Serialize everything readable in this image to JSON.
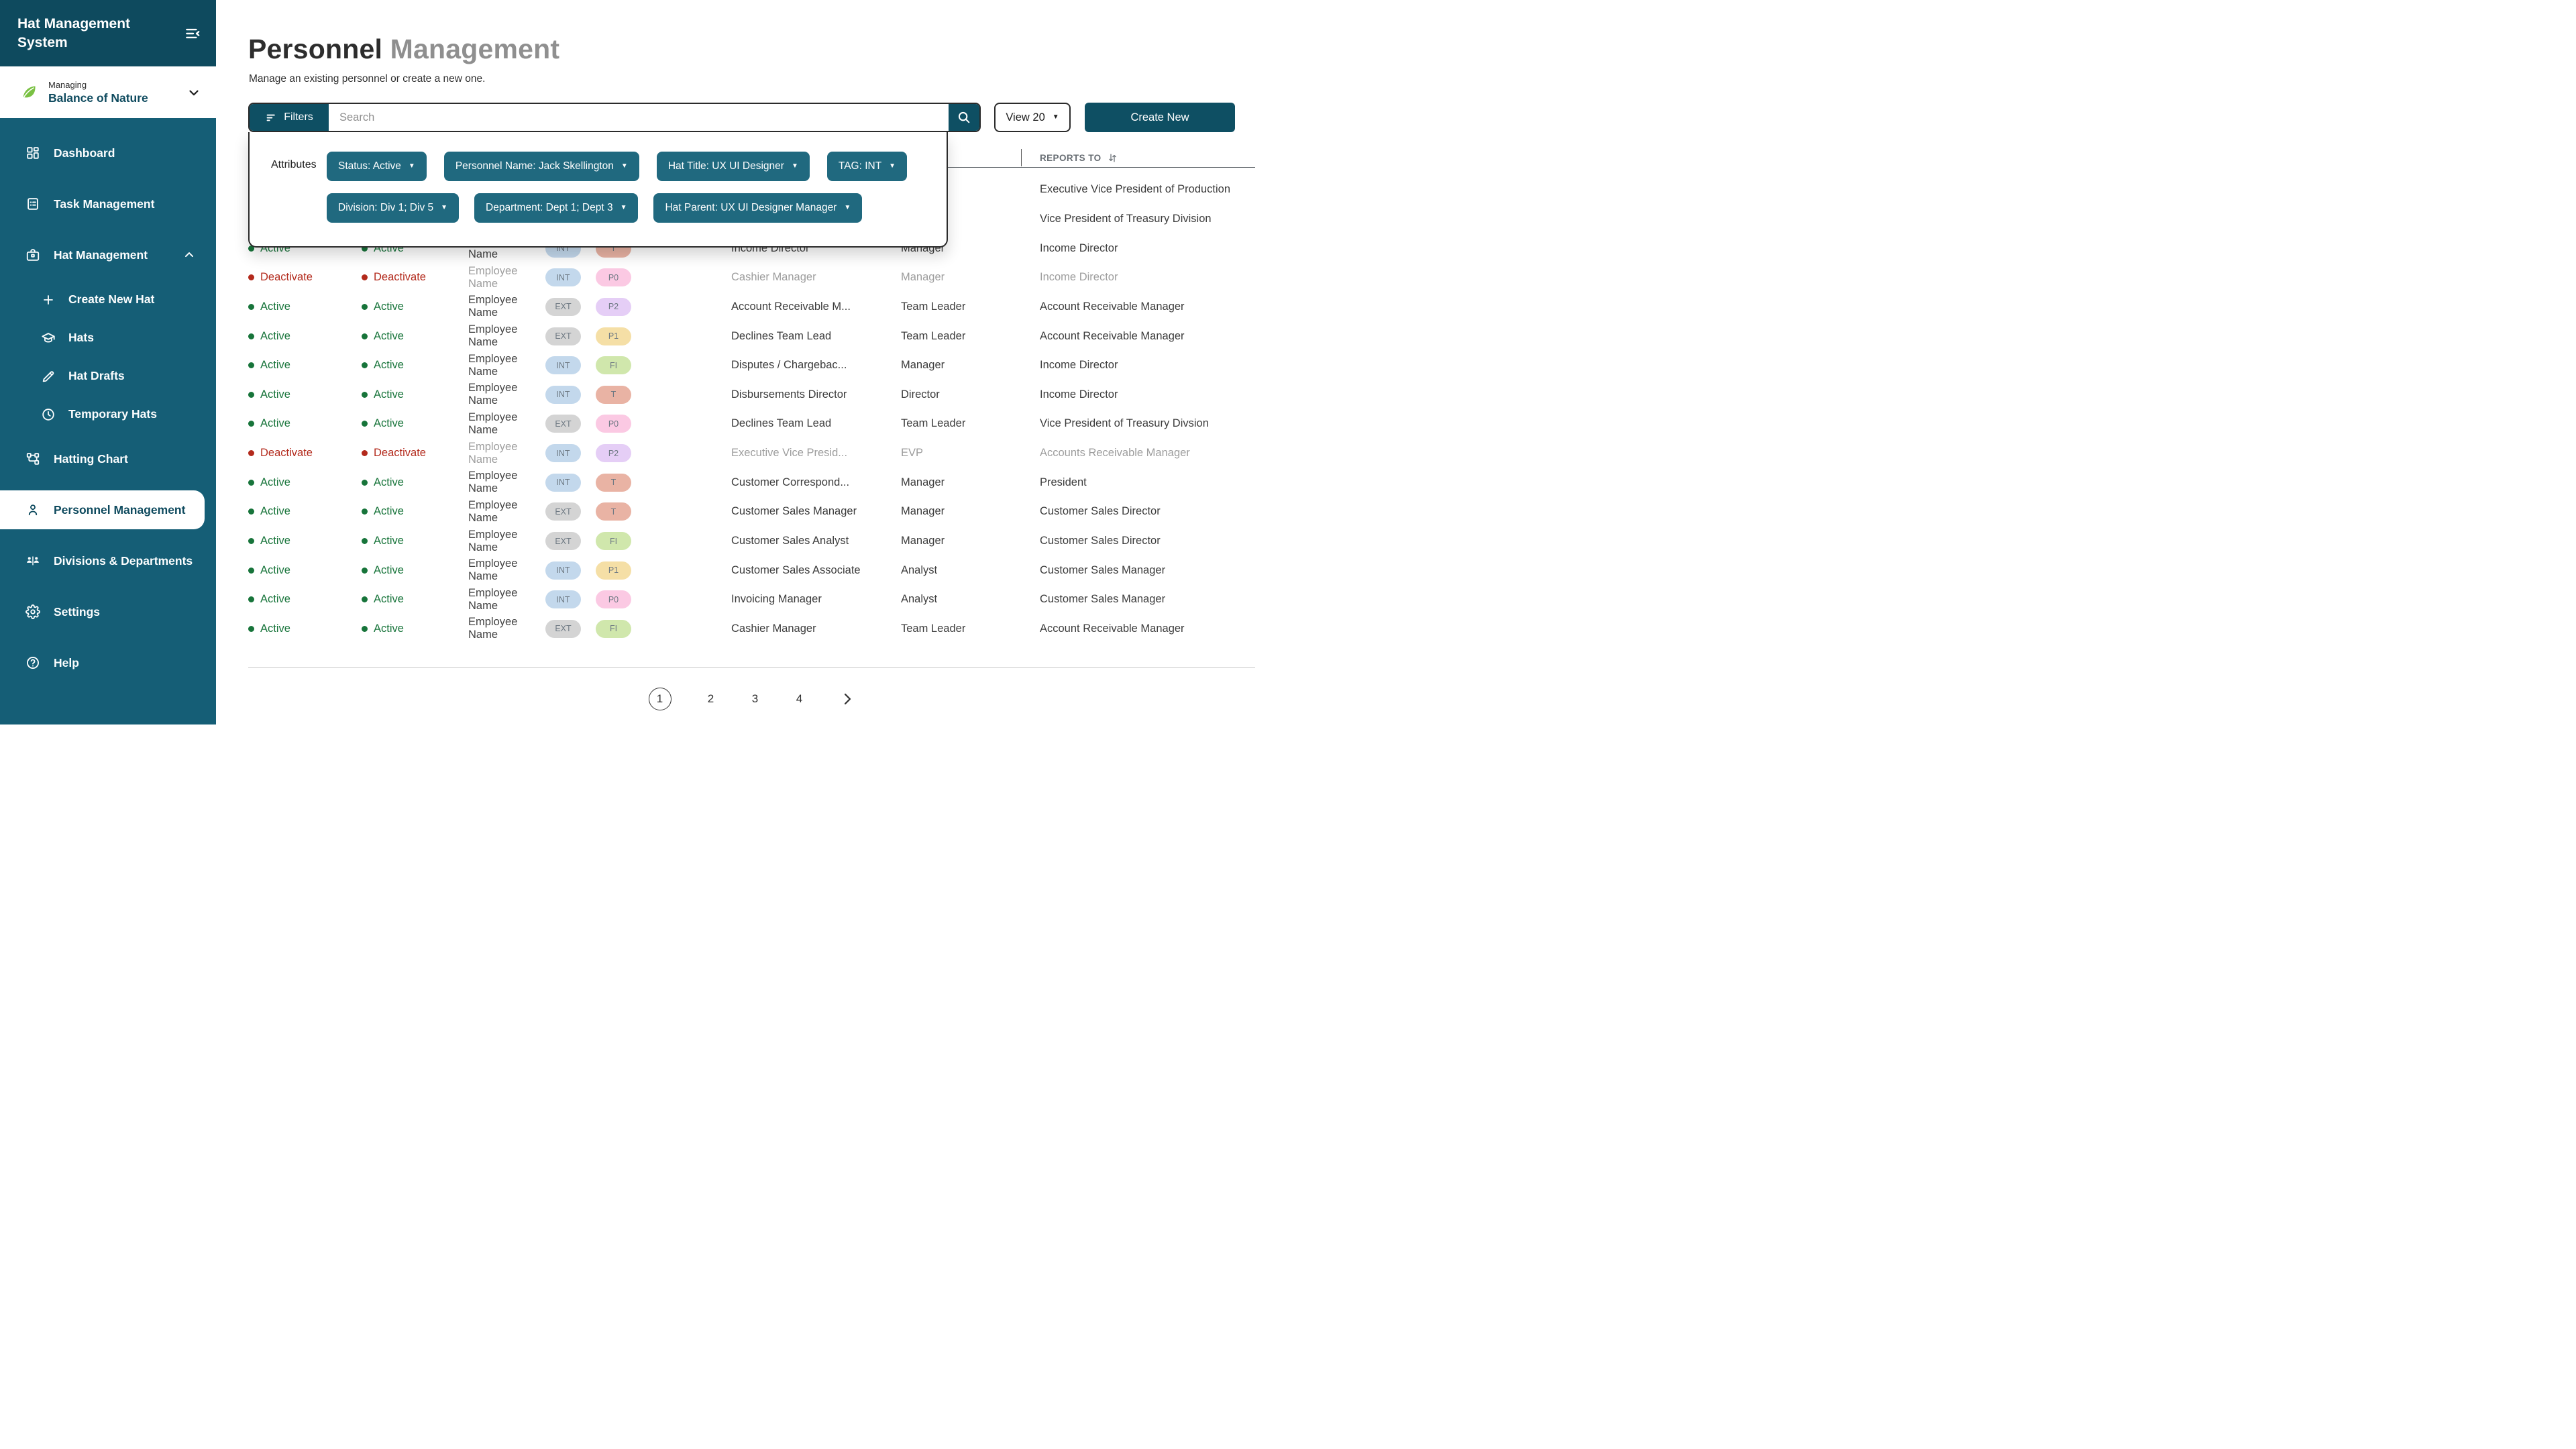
{
  "sidebar": {
    "app_title": "Hat Management System",
    "managing_label": "Managing",
    "managing_org": "Balance of Nature",
    "items": [
      {
        "label": "Dashboard",
        "icon": "dashboard-icon",
        "type": "main"
      },
      {
        "label": "Task Management",
        "icon": "task-list-icon",
        "type": "main"
      },
      {
        "label": "Hat Management",
        "icon": "briefcase-icon",
        "type": "main",
        "expanded": true
      },
      {
        "label": "Create New Hat",
        "icon": "plus-icon",
        "type": "sub"
      },
      {
        "label": "Hats",
        "icon": "graduation-cap-icon",
        "type": "sub"
      },
      {
        "label": "Hat Drafts",
        "icon": "pencil-icon",
        "type": "sub"
      },
      {
        "label": "Temporary Hats",
        "icon": "clock-icon",
        "type": "sub"
      },
      {
        "label": "Hatting Chart",
        "icon": "org-chart-icon",
        "type": "main"
      },
      {
        "label": "Personnel Management",
        "icon": "person-icon",
        "type": "main",
        "active": true
      },
      {
        "label": "Divisions & Departments",
        "icon": "people-divider-icon",
        "type": "main"
      },
      {
        "label": "Settings",
        "icon": "gear-icon",
        "type": "main"
      },
      {
        "label": "Help",
        "icon": "help-icon",
        "type": "main"
      }
    ]
  },
  "page": {
    "title_primary": "Personnel",
    "title_secondary": "Management",
    "subtitle": "Manage an existing personnel or create a new one."
  },
  "toolbar": {
    "filters_label": "Filters",
    "search_placeholder": "Search",
    "search_value": "",
    "view_label": "View 20",
    "create_new_label": "Create New"
  },
  "filter_panel": {
    "attributes_label": "Attributes",
    "chips_row1": [
      "Status: Active",
      "Personnel Name: Jack Skellington",
      "Hat Title: UX UI Designer",
      "TAG: INT"
    ],
    "chips_row2": [
      "Division: Div 1; Div 5",
      "Department: Dept 1; Dept 3",
      "Hat Parent: UX UI Designer Manager"
    ]
  },
  "table": {
    "reports_to_header": "REPORTS TO",
    "tag_colors": {
      "INT": "#c3d8ec",
      "EXT": "#d4d4d4",
      "T": "#e9b3a4",
      "P0": "#fbc9e3",
      "P1": "#f5dfa6",
      "P2": "#e5cef6",
      "FI": "#d0e7ac"
    },
    "status_colors": {
      "active": "#17743a",
      "deactivate": "#b32a1c"
    },
    "rows": [
      {
        "status": "",
        "status2": "",
        "employee": "",
        "tag": "",
        "level": "",
        "hat_title": "",
        "role": "",
        "reports_to": "Executive Vice President of Production",
        "muted": false
      },
      {
        "status": "",
        "status2": "",
        "employee": "",
        "tag": "",
        "level": "",
        "hat_title": "",
        "role": "",
        "reports_to": "Vice President of Treasury Division",
        "muted": false
      },
      {
        "status": "Active",
        "status2": "Active",
        "employee": "Employee Name",
        "tag": "INT",
        "level": "T",
        "hat_title": "Income Director",
        "role": "Manager",
        "reports_to": "Income Director",
        "muted": false
      },
      {
        "status": "Deactivate",
        "status2": "Deactivate",
        "employee": "Employee Name",
        "tag": "INT",
        "level": "P0",
        "hat_title": "Cashier Manager",
        "role": "Manager",
        "reports_to": "Income Director",
        "muted": true
      },
      {
        "status": "Active",
        "status2": "Active",
        "employee": "Employee Name",
        "tag": "EXT",
        "level": "P2",
        "hat_title": "Account Receivable M...",
        "role": "Team Leader",
        "reports_to": "Account Receivable Manager",
        "muted": false
      },
      {
        "status": "Active",
        "status2": "Active",
        "employee": "Employee Name",
        "tag": "EXT",
        "level": "P1",
        "hat_title": "Declines Team Lead",
        "role": "Team Leader",
        "reports_to": "Account Receivable Manager",
        "muted": false
      },
      {
        "status": "Active",
        "status2": "Active",
        "employee": "Employee Name",
        "tag": "INT",
        "level": "FI",
        "hat_title": "Disputes / Chargebac...",
        "role": "Manager",
        "reports_to": "Income Director",
        "muted": false
      },
      {
        "status": "Active",
        "status2": "Active",
        "employee": "Employee Name",
        "tag": "INT",
        "level": "T",
        "hat_title": "Disbursements Director",
        "role": "Director",
        "reports_to": "Income Director",
        "muted": false
      },
      {
        "status": "Active",
        "status2": "Active",
        "employee": "Employee Name",
        "tag": "EXT",
        "level": "P0",
        "hat_title": "Declines Team Lead",
        "role": "Team Leader",
        "reports_to": "Vice President of Treasury Divsion",
        "muted": false
      },
      {
        "status": "Deactivate",
        "status2": "Deactivate",
        "employee": "Employee Name",
        "tag": "INT",
        "level": "P2",
        "hat_title": "Executive Vice Presid...",
        "role": "EVP",
        "reports_to": "Accounts Receivable Manager",
        "muted": true
      },
      {
        "status": "Active",
        "status2": "Active",
        "employee": "Employee Name",
        "tag": "INT",
        "level": "T",
        "hat_title": "Customer Correspond...",
        "role": "Manager",
        "reports_to": "President",
        "muted": false
      },
      {
        "status": "Active",
        "status2": "Active",
        "employee": "Employee Name",
        "tag": "EXT",
        "level": "T",
        "hat_title": "Customer Sales Manager",
        "role": "Manager",
        "reports_to": "Customer Sales Director",
        "muted": false
      },
      {
        "status": "Active",
        "status2": "Active",
        "employee": "Employee Name",
        "tag": "EXT",
        "level": "FI",
        "hat_title": "Customer Sales Analyst",
        "role": "Manager",
        "reports_to": "Customer Sales Director",
        "muted": false
      },
      {
        "status": "Active",
        "status2": "Active",
        "employee": "Employee Name",
        "tag": "INT",
        "level": "P1",
        "hat_title": "Customer Sales Associate",
        "role": "Analyst",
        "reports_to": "Customer Sales Manager",
        "muted": false
      },
      {
        "status": "Active",
        "status2": "Active",
        "employee": "Employee Name",
        "tag": "INT",
        "level": "P0",
        "hat_title": "Invoicing Manager",
        "role": "Analyst",
        "reports_to": "Customer Sales Manager",
        "muted": false
      },
      {
        "status": "Active",
        "status2": "Active",
        "employee": "Employee Name",
        "tag": "EXT",
        "level": "FI",
        "hat_title": "Cashier Manager",
        "role": "Team Leader",
        "reports_to": "Account Receivable Manager",
        "muted": false
      }
    ]
  },
  "pagination": {
    "pages": [
      "1",
      "2",
      "3",
      "4"
    ],
    "current": "1"
  }
}
